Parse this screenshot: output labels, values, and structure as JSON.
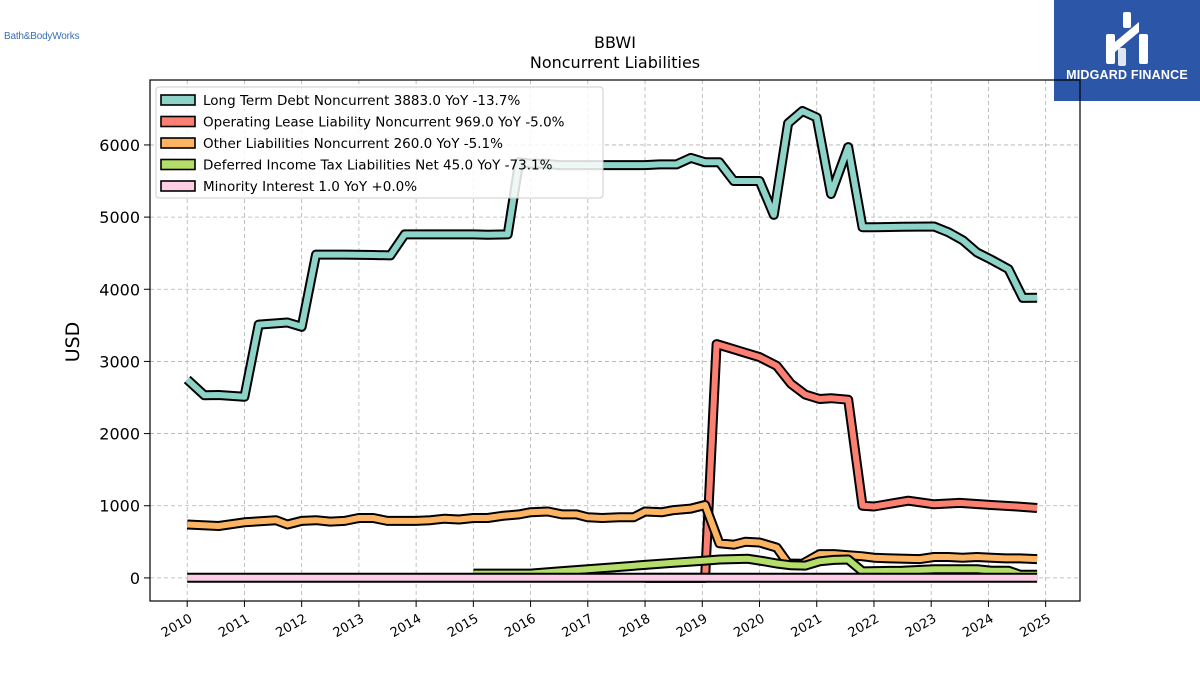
{
  "brand_left": {
    "text": "Bath&BodyWorks"
  },
  "brand_right": {
    "text": "MIDGARD FINANCE",
    "color": "#2c57a8"
  },
  "chart_data": {
    "type": "line",
    "title": "BBWI",
    "subtitle": "Noncurrent  Liabilities",
    "ylabel": "USD",
    "xlabel": "",
    "xlim": [
      2009.35,
      2025.6
    ],
    "ylim": [
      -320,
      6900
    ],
    "yticks": [
      0,
      1000,
      2000,
      3000,
      4000,
      5000,
      6000
    ],
    "xticks": [
      2010,
      2011,
      2012,
      2013,
      2014,
      2015,
      2016,
      2017,
      2018,
      2019,
      2020,
      2021,
      2022,
      2023,
      2024,
      2025
    ],
    "grid": true,
    "legend_position": "top-left",
    "series": [
      {
        "name": "Long Term Debt Noncurrent",
        "legend": "Long Term Debt Noncurrent  3883.0 YoY -13.7%",
        "color": "#8dd3c7",
        "x": [
          2010.0,
          2010.3,
          2010.55,
          2011.0,
          2011.25,
          2011.75,
          2012.0,
          2012.25,
          2012.75,
          2013.25,
          2013.55,
          2013.8,
          2014.25,
          2014.5,
          2015.0,
          2015.25,
          2015.6,
          2015.8,
          2016.0,
          2016.25,
          2016.5,
          2016.75,
          2017.0,
          2017.5,
          2018.0,
          2018.25,
          2018.55,
          2018.8,
          2019.05,
          2019.3,
          2019.55,
          2020.0,
          2020.25,
          2020.5,
          2020.75,
          2021.0,
          2021.25,
          2021.55,
          2021.8,
          2022.0,
          2022.5,
          2023.05,
          2023.3,
          2023.55,
          2023.8,
          2024.05,
          2024.35,
          2024.6,
          2024.85
        ],
        "values": [
          2750,
          2530,
          2535,
          2510,
          3510,
          3540,
          3480,
          4480,
          4480,
          4475,
          4470,
          4760,
          4760,
          4760,
          4760,
          4755,
          4760,
          5760,
          5740,
          5740,
          5720,
          5720,
          5720,
          5720,
          5720,
          5730,
          5730,
          5820,
          5760,
          5760,
          5500,
          5500,
          5030,
          6300,
          6470,
          6380,
          5320,
          5970,
          4860,
          4860,
          4865,
          4870,
          4790,
          4680,
          4510,
          4410,
          4280,
          3880,
          3883
        ]
      },
      {
        "name": "Operating Lease Liability Noncurrent",
        "legend": "Operating Lease Liability Noncurrent  969.0 YoY -5.0%",
        "color": "#fb8072",
        "x": [
          2018.0,
          2018.5,
          2019.05,
          2019.25,
          2019.5,
          2019.75,
          2020.0,
          2020.3,
          2020.55,
          2020.8,
          2021.05,
          2021.25,
          2021.55,
          2021.8,
          2022.0,
          2022.6,
          2023.05,
          2023.5,
          2024.05,
          2024.5,
          2024.85
        ],
        "values": [
          0,
          0,
          0,
          3240,
          3180,
          3120,
          3060,
          2940,
          2690,
          2540,
          2480,
          2490,
          2470,
          1000,
          990,
          1070,
          1020,
          1040,
          1010,
          990,
          969
        ]
      },
      {
        "name": "Other Liabilities Noncurrent",
        "legend": "Other Liabilities Noncurrent  260.0 YoY -5.1%",
        "color": "#fdb462",
        "x": [
          2010.0,
          2010.55,
          2011.0,
          2011.55,
          2011.75,
          2012.0,
          2012.25,
          2012.5,
          2012.75,
          2013.0,
          2013.25,
          2013.5,
          2013.75,
          2014.0,
          2014.25,
          2014.5,
          2014.75,
          2015.0,
          2015.25,
          2015.5,
          2015.8,
          2016.0,
          2016.3,
          2016.55,
          2016.8,
          2017.0,
          2017.25,
          2017.55,
          2017.8,
          2018.0,
          2018.3,
          2018.5,
          2018.8,
          2019.05,
          2019.3,
          2019.55,
          2019.75,
          2020.0,
          2020.3,
          2020.5,
          2020.75,
          2021.05,
          2021.3,
          2021.55,
          2021.8,
          2022.0,
          2022.3,
          2022.8,
          2023.05,
          2023.3,
          2023.55,
          2023.8,
          2024.05,
          2024.3,
          2024.55,
          2024.85
        ],
        "values": [
          740,
          720,
          770,
          800,
          740,
          790,
          800,
          780,
          790,
          830,
          830,
          790,
          790,
          790,
          800,
          820,
          810,
          830,
          830,
          860,
          880,
          910,
          920,
          880,
          880,
          840,
          830,
          840,
          840,
          920,
          910,
          940,
          960,
          1010,
          480,
          460,
          500,
          490,
          420,
          200,
          195,
          330,
          330,
          315,
          300,
          280,
          270,
          260,
          290,
          290,
          280,
          290,
          280,
          270,
          270,
          260
        ]
      },
      {
        "name": "Deferred Income Tax Liabilities Net",
        "legend": "Deferred Income Tax Liabilities Net  45.0 YoY -73.1%",
        "color": "#b3de69",
        "x": [
          2015.0,
          2015.6,
          2016.0,
          2016.5,
          2017.0,
          2017.5,
          2018.0,
          2018.5,
          2019.05,
          2019.3,
          2019.55,
          2019.8,
          2020.05,
          2020.3,
          2020.55,
          2020.8,
          2021.05,
          2021.3,
          2021.55,
          2021.8,
          2022.05,
          2022.5,
          2023.05,
          2023.5,
          2023.8,
          2024.05,
          2024.35,
          2024.55,
          2024.85
        ],
        "values": [
          60,
          60,
          60,
          90,
          120,
          150,
          180,
          210,
          240,
          255,
          260,
          265,
          235,
          200,
          175,
          170,
          230,
          250,
          255,
          90,
          95,
          100,
          120,
          120,
          120,
          100,
          100,
          45,
          45
        ]
      },
      {
        "name": "Minority Interest",
        "legend": "Minority Interest  1.0 YoY +0.0%",
        "color": "#fccde5",
        "x": [
          2010.0,
          2012.0,
          2014.0,
          2016.0,
          2018.0,
          2020.0,
          2022.0,
          2024.0,
          2024.85
        ],
        "values": [
          1,
          1,
          1,
          1,
          1,
          1,
          1,
          1,
          1
        ]
      }
    ]
  }
}
